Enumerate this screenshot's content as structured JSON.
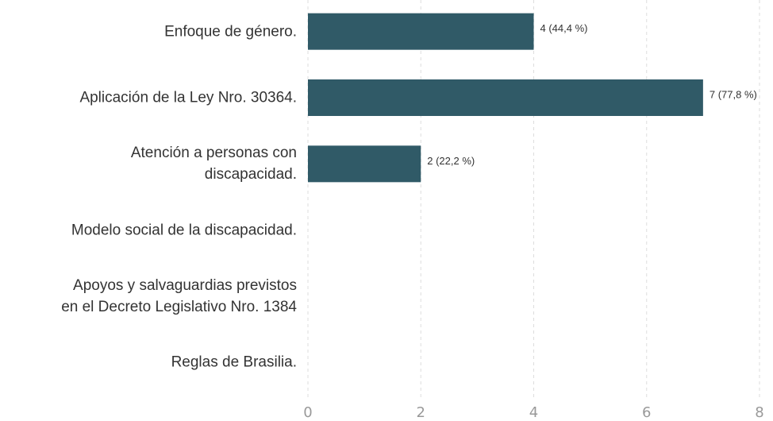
{
  "chart_data": {
    "type": "bar",
    "orientation": "horizontal",
    "categories": [
      "Enfoque de género.",
      "Aplicación de la Ley Nro. 30364.",
      "Atención a personas con\ndiscapacidad.",
      "Modelo social de la discapacidad.",
      "Apoyos y salvaguardias previstos\nen el Decreto Legislativo Nro. 1384",
      "Reglas de Brasilia."
    ],
    "values": [
      4,
      7,
      2,
      0,
      0,
      0
    ],
    "value_labels": [
      "4 (44,4 %)",
      "7 (77,8 %)",
      "2 (22,2 %)",
      null,
      null,
      null
    ],
    "color": "#305a67",
    "xlim": [
      0,
      8
    ],
    "xticks": [
      0,
      2,
      4,
      6,
      8
    ],
    "grid": true
  }
}
